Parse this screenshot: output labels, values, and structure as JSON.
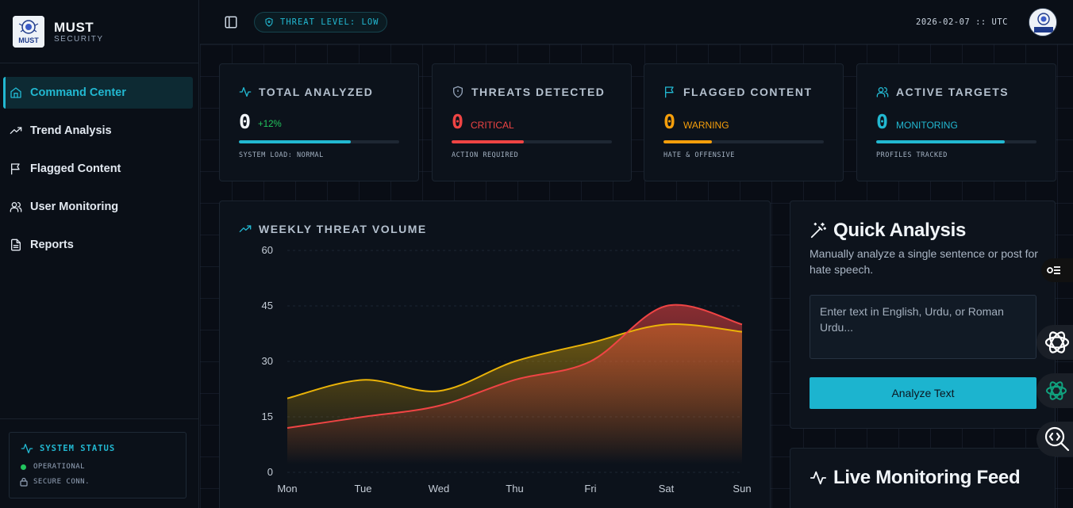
{
  "brand": {
    "name": "MUST",
    "subtitle": "SECURITY",
    "logo_text": "MUST"
  },
  "sidebar": {
    "items": [
      {
        "label": "Command Center",
        "icon": "home-icon",
        "active": true
      },
      {
        "label": "Trend Analysis",
        "icon": "trend-icon"
      },
      {
        "label": "Flagged Content",
        "icon": "flag-icon"
      },
      {
        "label": "User Monitoring",
        "icon": "users-icon"
      },
      {
        "label": "Reports",
        "icon": "document-icon"
      }
    ],
    "system_status": {
      "title": "SYSTEM STATUS",
      "operational": "OPERATIONAL",
      "secure": "SECURE CONN."
    }
  },
  "topbar": {
    "threat_level": "THREAT LEVEL: LOW",
    "timestamp": "2026-02-07 :: UTC"
  },
  "stats": [
    {
      "title": "TOTAL ANALYZED",
      "icon": "pulse-icon",
      "value": "0",
      "tag": "+12%",
      "foot": "SYSTEM LOAD: NORMAL",
      "progress": 0.7,
      "color": "#22b8d1",
      "value_color": "#f1f5f9",
      "tag_color": "#22c55e"
    },
    {
      "title": "THREATS DETECTED",
      "icon": "shield-icon",
      "value": "0",
      "tag": "CRITICAL",
      "foot": "ACTION REQUIRED",
      "progress": 0.45,
      "color": "#ef4444",
      "value_color": "#ef4444",
      "tag_color": "#ef4444"
    },
    {
      "title": "FLAGGED CONTENT",
      "icon": "flag-icon",
      "value": "0",
      "tag": "WARNING",
      "foot": "HATE & OFFENSIVE",
      "progress": 0.3,
      "color": "#f59e0b",
      "value_color": "#f59e0b",
      "tag_color": "#f59e0b"
    },
    {
      "title": "ACTIVE TARGETS",
      "icon": "users-icon",
      "value": "0",
      "tag": "MONITORING",
      "foot": "PROFILES TRACKED",
      "progress": 0.8,
      "color": "#22b8d1",
      "value_color": "#22b8d1",
      "tag_color": "#22b8d1"
    }
  ],
  "chart_data": {
    "type": "area",
    "title": "WEEKLY THREAT VOLUME",
    "categories": [
      "Mon",
      "Tue",
      "Wed",
      "Thu",
      "Fri",
      "Sat",
      "Sun"
    ],
    "yticks": [
      0,
      15,
      30,
      45,
      60
    ],
    "ylim": [
      0,
      60
    ],
    "series": [
      {
        "values": [
          12,
          15,
          18,
          25,
          30,
          45,
          40
        ],
        "color": "#ef4444"
      },
      {
        "values": [
          20,
          25,
          22,
          30,
          35,
          40,
          38
        ],
        "color": "#eab308"
      }
    ]
  },
  "quick_analysis": {
    "title": "Quick Analysis",
    "description": "Manually analyze a single sentence or post for hate speech.",
    "placeholder": "Enter text in English, Urdu, or Roman Urdu...",
    "button": "Analyze Text"
  },
  "live_feed": {
    "title": "Live Monitoring Feed"
  }
}
